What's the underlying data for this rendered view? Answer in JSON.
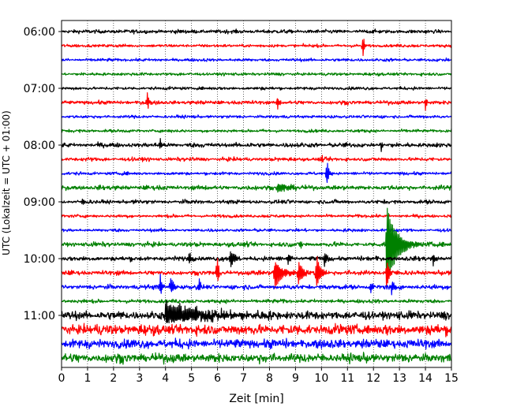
{
  "chart_data": {
    "type": "line",
    "title": "",
    "xlabel": "Zeit  [min]",
    "ylabel": "UTC (Lokalzeit = UTC + 01:00)",
    "xlim": [
      0,
      15
    ],
    "x_ticks": [
      "0",
      "1",
      "2",
      "3",
      "4",
      "5",
      "6",
      "7",
      "8",
      "9",
      "10",
      "11",
      "12",
      "13",
      "14",
      "15"
    ],
    "y_ticks": [
      "06:00",
      "07:00",
      "08:00",
      "09:00",
      "10:00",
      "11:00"
    ],
    "traces_per_hour": 4,
    "trace_minutes": 15,
    "first_trace": "06:00",
    "trace_count": 24,
    "color_cycle": [
      "#000000",
      "#ff0000",
      "#0000ff",
      "#008000"
    ],
    "grid": "vertical dotted at each minute",
    "series": [
      {
        "start": "06:00",
        "color": "#000000",
        "noise": 0.25
      },
      {
        "start": "06:15",
        "color": "#ff0000",
        "noise": 0.2,
        "events": [
          {
            "t": 11.6,
            "amp": 1.0,
            "dur": 0.05
          }
        ]
      },
      {
        "start": "06:30",
        "color": "#0000ff",
        "noise": 0.2
      },
      {
        "start": "06:45",
        "color": "#008000",
        "noise": 0.2
      },
      {
        "start": "07:00",
        "color": "#000000",
        "noise": 0.2
      },
      {
        "start": "07:15",
        "color": "#ff0000",
        "noise": 0.25,
        "events": [
          {
            "t": 3.3,
            "amp": 0.8,
            "dur": 0.05
          },
          {
            "t": 8.3,
            "amp": 0.6,
            "dur": 0.05
          },
          {
            "t": 14.0,
            "amp": 0.6,
            "dur": 0.05
          }
        ]
      },
      {
        "start": "07:30",
        "color": "#0000ff",
        "noise": 0.2
      },
      {
        "start": "07:45",
        "color": "#008000",
        "noise": 0.2
      },
      {
        "start": "08:00",
        "color": "#000000",
        "noise": 0.3,
        "events": [
          {
            "t": 3.8,
            "amp": 0.4,
            "dur": 0.05
          },
          {
            "t": 12.3,
            "amp": 0.4,
            "dur": 0.05
          }
        ]
      },
      {
        "start": "08:15",
        "color": "#ff0000",
        "noise": 0.25,
        "events": [
          {
            "t": 10.0,
            "amp": 0.6,
            "dur": 0.05
          }
        ]
      },
      {
        "start": "08:30",
        "color": "#0000ff",
        "noise": 0.2,
        "events": [
          {
            "t": 10.2,
            "amp": 1.1,
            "dur": 0.08
          }
        ]
      },
      {
        "start": "08:45",
        "color": "#008000",
        "noise": 0.3,
        "events": [
          {
            "t": 8.3,
            "amp": 0.4,
            "dur": 0.3
          }
        ]
      },
      {
        "start": "09:00",
        "color": "#000000",
        "noise": 0.25,
        "events": [
          {
            "t": 0.8,
            "amp": 0.4,
            "dur": 0.05
          }
        ]
      },
      {
        "start": "09:15",
        "color": "#ff0000",
        "noise": 0.2
      },
      {
        "start": "09:30",
        "color": "#0000ff",
        "noise": 0.2
      },
      {
        "start": "09:45",
        "color": "#008000",
        "noise": 0.3,
        "events": [
          {
            "t": 9.2,
            "amp": 0.5,
            "dur": 0.05
          },
          {
            "t": 12.5,
            "amp": 3.2,
            "dur": 0.35
          }
        ]
      },
      {
        "start": "10:00",
        "color": "#000000",
        "noise": 0.3,
        "events": [
          {
            "t": 4.9,
            "amp": 0.5,
            "dur": 0.1
          },
          {
            "t": 6.5,
            "amp": 0.6,
            "dur": 0.15
          },
          {
            "t": 8.7,
            "amp": 0.5,
            "dur": 0.1
          },
          {
            "t": 10.1,
            "amp": 0.8,
            "dur": 0.1
          },
          {
            "t": 14.3,
            "amp": 0.5,
            "dur": 0.05
          }
        ]
      },
      {
        "start": "10:15",
        "color": "#ff0000",
        "noise": 0.3,
        "events": [
          {
            "t": 6.0,
            "amp": 1.0,
            "dur": 0.05
          },
          {
            "t": 8.2,
            "amp": 1.2,
            "dur": 0.25
          },
          {
            "t": 9.1,
            "amp": 0.9,
            "dur": 0.15
          },
          {
            "t": 9.8,
            "amp": 1.3,
            "dur": 0.15
          },
          {
            "t": 12.5,
            "amp": 1.2,
            "dur": 0.1
          }
        ]
      },
      {
        "start": "10:30",
        "color": "#0000ff",
        "noise": 0.3,
        "events": [
          {
            "t": 3.8,
            "amp": 0.9,
            "dur": 0.05
          },
          {
            "t": 4.2,
            "amp": 0.6,
            "dur": 0.15
          },
          {
            "t": 5.3,
            "amp": 0.7,
            "dur": 0.05
          },
          {
            "t": 11.9,
            "amp": 0.5,
            "dur": 0.05
          },
          {
            "t": 12.7,
            "amp": 0.6,
            "dur": 0.1
          }
        ]
      },
      {
        "start": "10:45",
        "color": "#008000",
        "noise": 0.25
      },
      {
        "start": "11:00",
        "color": "#000000",
        "noise": 0.55,
        "events": [
          {
            "t": 4.0,
            "amp": 0.8,
            "dur": 1.5
          }
        ]
      },
      {
        "start": "11:15",
        "color": "#ff0000",
        "noise": 0.7
      },
      {
        "start": "11:30",
        "color": "#0000ff",
        "noise": 0.6
      },
      {
        "start": "11:45",
        "color": "#008000",
        "noise": 0.6
      }
    ]
  }
}
